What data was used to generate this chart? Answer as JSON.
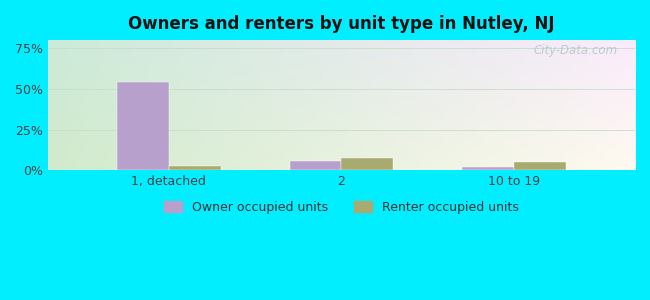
{
  "title": "Owners and renters by unit type in Nutley, NJ",
  "categories": [
    "1, detached",
    "2",
    "10 to 19"
  ],
  "owner_values": [
    54.0,
    5.5,
    2.0
  ],
  "renter_values": [
    2.5,
    7.5,
    5.0
  ],
  "owner_color": "#b8a0cc",
  "renter_color": "#a8aa70",
  "yticks": [
    0,
    25,
    50,
    75
  ],
  "ytick_labels": [
    "0%",
    "25%",
    "50%",
    "75%"
  ],
  "ylim": [
    0,
    80
  ],
  "bar_width": 0.3,
  "outer_bg": "#00eeff",
  "legend_owner": "Owner occupied units",
  "legend_renter": "Renter occupied units",
  "watermark": "City-Data.com",
  "grid_color": "#c0d8c0",
  "bg_color_topleft": "#c8ecd8",
  "bg_color_topright": "#e8f4e8",
  "bg_color_bottom": "#d8eed8"
}
